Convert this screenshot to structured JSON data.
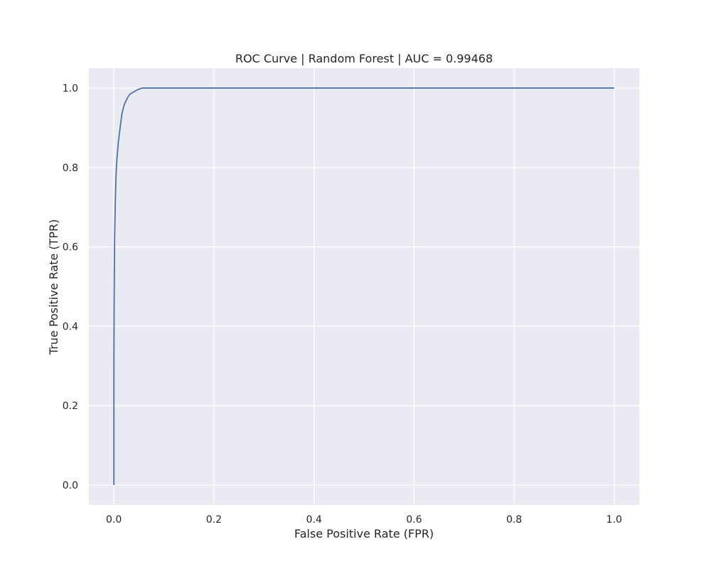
{
  "chart_data": {
    "type": "line",
    "title": "ROC Curve | Random Forest | AUC = 0.99468",
    "xlabel": "False Positive Rate (FPR)",
    "ylabel": "True Positive Rate (TPR)",
    "xlim": [
      -0.05,
      1.05
    ],
    "ylim": [
      -0.05,
      1.05
    ],
    "xticks": [
      0.0,
      0.2,
      0.4,
      0.6,
      0.8,
      1.0
    ],
    "yticks": [
      0.0,
      0.2,
      0.4,
      0.6,
      0.8,
      1.0
    ],
    "xtick_labels": [
      "0.0",
      "0.2",
      "0.4",
      "0.6",
      "0.8",
      "1.0"
    ],
    "ytick_labels": [
      "0.0",
      "0.2",
      "0.4",
      "0.6",
      "0.8",
      "1.0"
    ],
    "grid": true,
    "series": [
      {
        "x": [
          0.0,
          0.0,
          0.0005,
          0.001,
          0.0015,
          0.002,
          0.003,
          0.004,
          0.005,
          0.006,
          0.007,
          0.008,
          0.009,
          0.01,
          0.011,
          0.012,
          0.013,
          0.014,
          0.015,
          0.016,
          0.018,
          0.02,
          0.022,
          0.025,
          0.028,
          0.031,
          0.034,
          0.038,
          0.042,
          0.046,
          0.05,
          0.054,
          0.058,
          0.06,
          0.1,
          0.2,
          0.4,
          0.6,
          0.8,
          1.0
        ],
        "y": [
          0.0,
          0.3,
          0.45,
          0.55,
          0.62,
          0.66,
          0.72,
          0.77,
          0.8,
          0.82,
          0.835,
          0.85,
          0.865,
          0.875,
          0.885,
          0.895,
          0.905,
          0.915,
          0.925,
          0.935,
          0.945,
          0.955,
          0.962,
          0.97,
          0.977,
          0.983,
          0.986,
          0.989,
          0.992,
          0.995,
          0.997,
          0.999,
          1.0,
          1.0,
          1.0,
          1.0,
          1.0,
          1.0,
          1.0,
          1.0
        ]
      }
    ]
  },
  "colors": {
    "plot_background": "#eaeaf2",
    "grid": "#ffffff",
    "line": "#4c72b0",
    "text": "#262626"
  }
}
